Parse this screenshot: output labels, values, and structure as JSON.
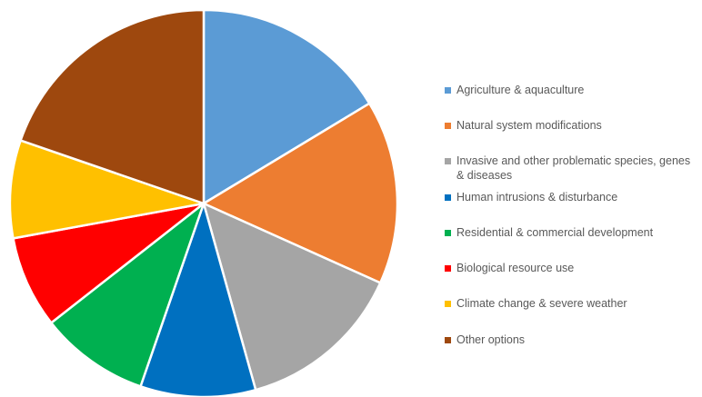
{
  "chart_data": {
    "type": "pie",
    "title": "",
    "slices": [
      {
        "label": "Agriculture & aquaculture",
        "value": 17,
        "color": "#5B9BD5"
      },
      {
        "label": "Natural system modifications",
        "value": 16,
        "color": "#ED7D31"
      },
      {
        "label": " Invasive and other problematic species, genes & diseases",
        "value": 14.5,
        "color": "#A5A5A5"
      },
      {
        "label": "Human intrusions & disturbance",
        "value": 10,
        "color": "#0070C0"
      },
      {
        "label": "Residential & commercial development",
        "value": 9.5,
        "color": "#00B050"
      },
      {
        "label": "Biological resource use",
        "value": 8,
        "color": "#FF0000"
      },
      {
        "label": "Climate change & severe weather",
        "value": 8.5,
        "color": "#FFC000"
      },
      {
        "label": "Other options",
        "value": 20.5,
        "color": "#9E480E"
      }
    ],
    "legend_position": "right",
    "start_angle": "12 o'clock",
    "direction": "clockwise"
  }
}
